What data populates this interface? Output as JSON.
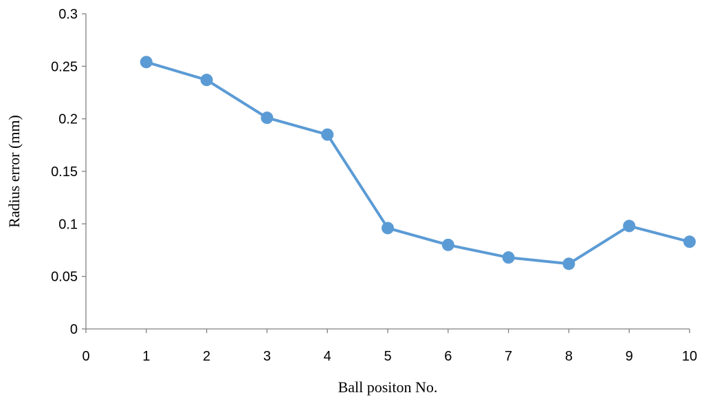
{
  "chart_data": {
    "type": "line",
    "title": "",
    "xlabel": "Ball positon No.",
    "ylabel": "Radius error (mm)",
    "xlim": [
      0,
      10
    ],
    "ylim": [
      0,
      0.3
    ],
    "x_ticks": [
      0,
      1,
      2,
      3,
      4,
      5,
      6,
      7,
      8,
      9,
      10
    ],
    "y_ticks": [
      0,
      0.05,
      0.1,
      0.15,
      0.2,
      0.25,
      0.3
    ],
    "x_tick_labels": [
      "0",
      "1",
      "2",
      "3",
      "4",
      "5",
      "6",
      "7",
      "8",
      "9",
      "10"
    ],
    "y_tick_labels": [
      "0",
      "0.05",
      "0.1",
      "0.15",
      "0.2",
      "0.25",
      "0.3"
    ],
    "grid": false,
    "legend": "none",
    "series": [
      {
        "color": "#5b9bd5",
        "marker": "circle",
        "x": [
          1,
          2,
          3,
          4,
          5,
          6,
          7,
          8,
          9,
          10
        ],
        "y": [
          0.254,
          0.237,
          0.201,
          0.185,
          0.096,
          0.08,
          0.068,
          0.062,
          0.098,
          0.083
        ]
      }
    ]
  }
}
